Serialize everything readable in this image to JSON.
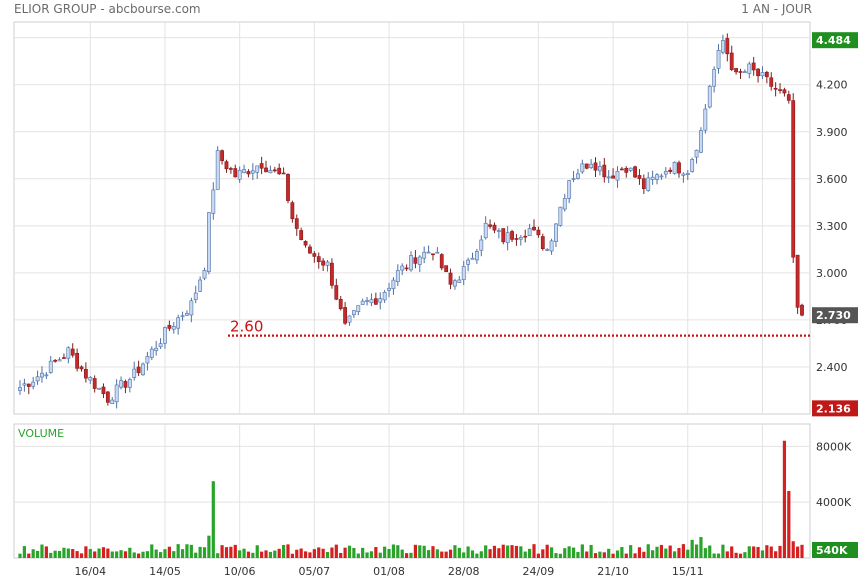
{
  "header": {
    "title": "ELIOR GROUP - abcbourse.com",
    "period": "1 AN - JOUR"
  },
  "colors": {
    "up": "#29a329",
    "down": "#d42020",
    "candle_up_fill": "#c9d9f2",
    "candle_up_stroke": "#4a6fa8",
    "candle_down_fill": "#c42a2a",
    "support_line": "#cc1111",
    "badge_high": "#1f8f1f",
    "badge_last": "#555555",
    "badge_low": "#c01818",
    "grid": "#e3e3e3"
  },
  "chart_data": [
    {
      "type": "candlestick",
      "title": "ELIOR GROUP - abcbourse.com",
      "ylim": [
        2.1,
        4.6
      ],
      "y_ticks": [
        2.4,
        2.7,
        3.0,
        3.3,
        3.6,
        3.9,
        4.2,
        4.5
      ],
      "y_tick_labels": [
        "2.400",
        "2.700",
        "3.000",
        "3.300",
        "3.600",
        "3.900",
        "4.200",
        "4.500"
      ],
      "x_tick_labels": [
        "16/04",
        "14/05",
        "10/06",
        "05/07",
        "01/08",
        "28/08",
        "24/09",
        "21/10",
        "15/11"
      ],
      "grid": true,
      "badges": {
        "high": "4.484",
        "last": "2.730",
        "low": "2.136"
      },
      "support": {
        "value": 2.6,
        "label": "2.60"
      },
      "anchors": [
        {
          "x": 0,
          "y": 2.27
        },
        {
          "x": 5,
          "y": 2.36
        },
        {
          "x": 11,
          "y": 2.5
        },
        {
          "x": 15,
          "y": 2.35
        },
        {
          "x": 20,
          "y": 2.2
        },
        {
          "x": 26,
          "y": 2.35
        },
        {
          "x": 34,
          "y": 2.65
        },
        {
          "x": 39,
          "y": 2.8
        },
        {
          "x": 42,
          "y": 3.05
        },
        {
          "x": 43,
          "y": 3.35
        },
        {
          "x": 45,
          "y": 3.75
        },
        {
          "x": 49,
          "y": 3.62
        },
        {
          "x": 55,
          "y": 3.7
        },
        {
          "x": 60,
          "y": 3.6
        },
        {
          "x": 62,
          "y": 3.35
        },
        {
          "x": 65,
          "y": 3.15
        },
        {
          "x": 70,
          "y": 3.05
        },
        {
          "x": 74,
          "y": 2.65
        },
        {
          "x": 78,
          "y": 2.8
        },
        {
          "x": 82,
          "y": 2.85
        },
        {
          "x": 86,
          "y": 3.0
        },
        {
          "x": 90,
          "y": 3.1
        },
        {
          "x": 94,
          "y": 3.15
        },
        {
          "x": 98,
          "y": 2.92
        },
        {
          "x": 102,
          "y": 3.05
        },
        {
          "x": 106,
          "y": 3.3
        },
        {
          "x": 110,
          "y": 3.22
        },
        {
          "x": 116,
          "y": 3.28
        },
        {
          "x": 120,
          "y": 3.15
        },
        {
          "x": 125,
          "y": 3.6
        },
        {
          "x": 130,
          "y": 3.72
        },
        {
          "x": 134,
          "y": 3.62
        },
        {
          "x": 138,
          "y": 3.68
        },
        {
          "x": 142,
          "y": 3.55
        },
        {
          "x": 148,
          "y": 3.68
        },
        {
          "x": 152,
          "y": 3.66
        },
        {
          "x": 155,
          "y": 3.9
        },
        {
          "x": 157,
          "y": 4.2
        },
        {
          "x": 160,
          "y": 4.48
        },
        {
          "x": 163,
          "y": 4.25
        },
        {
          "x": 166,
          "y": 4.3
        },
        {
          "x": 170,
          "y": 4.22
        },
        {
          "x": 175,
          "y": 4.1
        },
        {
          "x": 176,
          "y": 3.1
        },
        {
          "x": 177,
          "y": 2.78
        },
        {
          "x": 178,
          "y": 2.73
        }
      ],
      "candle_count": 179
    },
    {
      "type": "bar",
      "title": "VOLUME",
      "ylim": [
        0,
        9600000
      ],
      "y_ticks": [
        4000000,
        8000000
      ],
      "y_tick_labels": [
        "4000K",
        "8000K"
      ],
      "last_badge": "540K",
      "spikes": [
        {
          "x": 44,
          "value": 5500000
        },
        {
          "x": 174,
          "value": 8400000
        },
        {
          "x": 175,
          "value": 4800000
        },
        {
          "x": 176,
          "value": 1200000
        },
        {
          "x": 43,
          "value": 1600000
        },
        {
          "x": 155,
          "value": 1500000
        },
        {
          "x": 153,
          "value": 1300000
        }
      ],
      "base_range": [
        300000,
        1000000
      ]
    }
  ]
}
